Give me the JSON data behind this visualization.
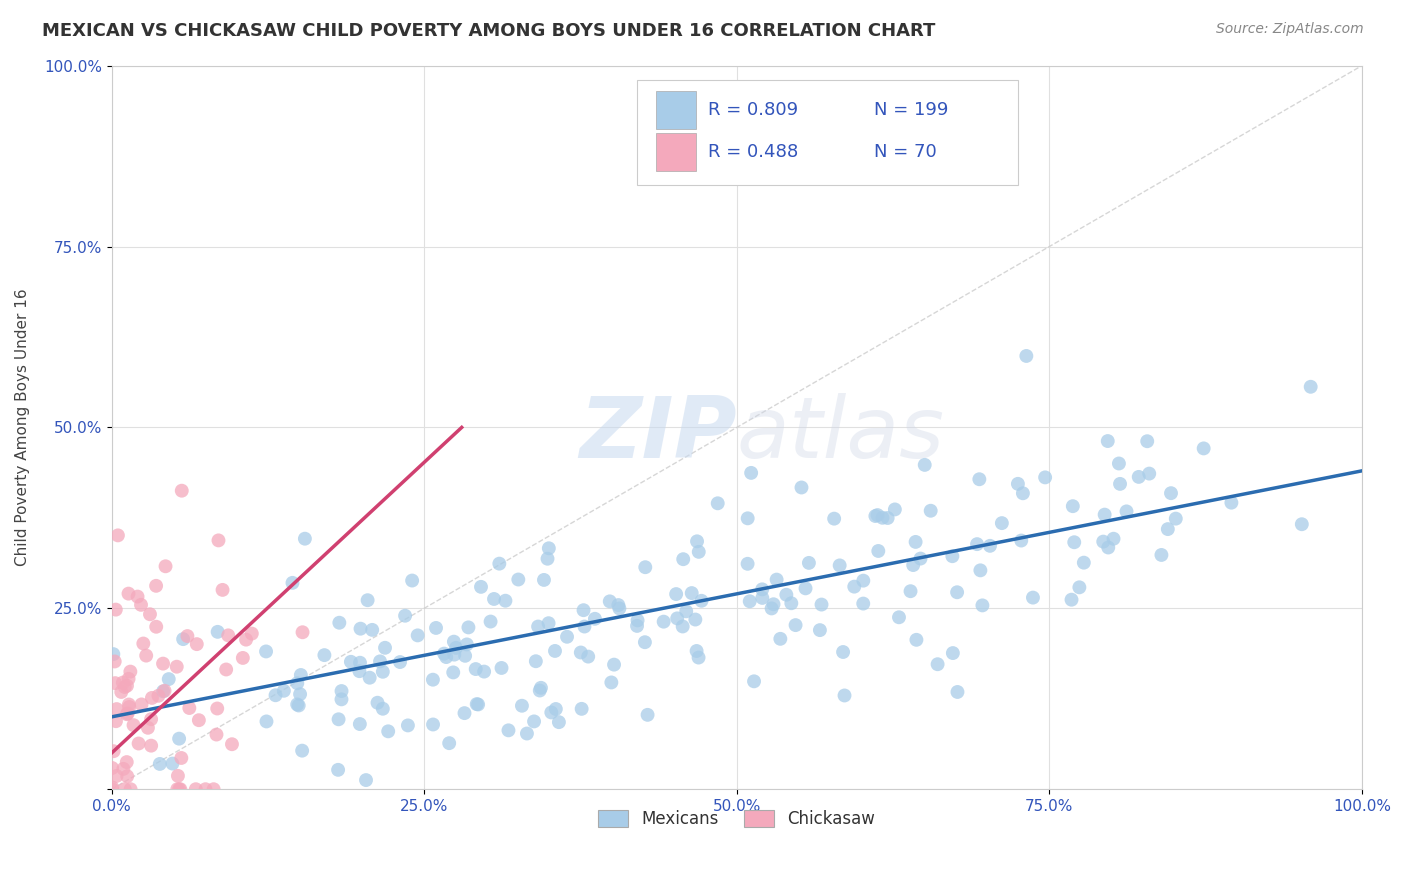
{
  "title": "MEXICAN VS CHICKASAW CHILD POVERTY AMONG BOYS UNDER 16 CORRELATION CHART",
  "source_text": "Source: ZipAtlas.com",
  "ylabel": "Child Poverty Among Boys Under 16",
  "watermark_zip": "ZIP",
  "watermark_atlas": "atlas",
  "legend_r1": "R = 0.809",
  "legend_n1": "N = 199",
  "legend_r2": "R = 0.488",
  "legend_n2": "N = 70",
  "x_ticks": [
    0.0,
    0.25,
    0.5,
    0.75,
    1.0
  ],
  "y_ticks": [
    0.0,
    0.25,
    0.5,
    0.75,
    1.0
  ],
  "x_tick_labels": [
    "0.0%",
    "25.0%",
    "50.0%",
    "75.0%",
    "100.0%"
  ],
  "y_tick_labels": [
    "",
    "25.0%",
    "50.0%",
    "75.0%",
    "100.0%"
  ],
  "blue_scatter_color": "#a8cce8",
  "pink_scatter_color": "#f4a9bc",
  "blue_line_color": "#2b6cb0",
  "pink_line_color": "#d04070",
  "title_color": "#333333",
  "source_color": "#888888",
  "legend_text_color": "#3355bb",
  "grid_color": "#e0e0e0",
  "background_color": "#ffffff",
  "diag_color": "#cccccc",
  "mex_trend_x0": 0.0,
  "mex_trend_y0": 0.1,
  "mex_trend_x1": 1.0,
  "mex_trend_y1": 0.44,
  "chick_trend_x0": 0.0,
  "chick_trend_y0": 0.05,
  "chick_trend_x1": 0.28,
  "chick_trend_y1": 0.5
}
